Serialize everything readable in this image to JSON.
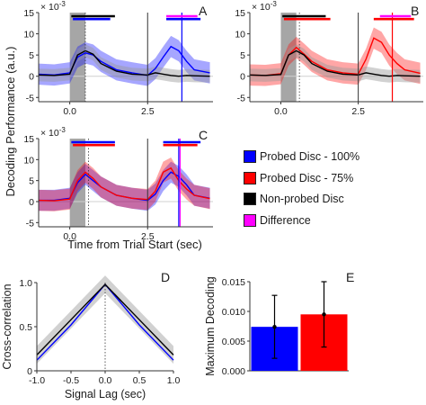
{
  "figure": {
    "shared_y_label": "Decoding Performance (a.u.)",
    "shared_x_label": "Time from Trial Start (sec)"
  },
  "legend": [
    {
      "label": "Probed Disc - 100%",
      "color": "#0000ff"
    },
    {
      "label": "Probed Disc - 75%",
      "color": "#ff0000"
    },
    {
      "label": "Non-probed Disc",
      "color": "#000000"
    },
    {
      "label": "Difference",
      "color": "#ff00ff"
    }
  ],
  "chart_data": [
    {
      "panel": "A",
      "type": "line",
      "y_multiplier": "x 10^-3",
      "xlim": [
        -1.0,
        4.6
      ],
      "ylim": [
        -6,
        15
      ],
      "xticks": [
        "0.0",
        "2.5"
      ],
      "yticks": [
        "-5",
        "0",
        "5",
        "10",
        "15"
      ],
      "shaded_window": [
        0,
        0.5
      ],
      "dotted_x": [
        0.5
      ],
      "vlines_black": [
        2.5
      ],
      "vline_series": 3.6,
      "sig_bars": [
        {
          "series": "Non-probed Disc",
          "color": "#000000",
          "from": 0.05,
          "to": 1.45
        },
        {
          "series": "Probed Disc - 100%",
          "color": "#0000ff",
          "from": 0.1,
          "to": 1.3
        },
        {
          "series": "Difference",
          "color": "#ff00ff",
          "from": 3.1,
          "to": 4.1
        },
        {
          "series": "Probed Disc - 100%",
          "color": "#0000ff",
          "from": 3.1,
          "to": 4.2
        }
      ],
      "x": [
        -1.0,
        -0.5,
        0.0,
        0.25,
        0.5,
        0.75,
        1.0,
        1.5,
        2.0,
        2.5,
        2.75,
        3.0,
        3.25,
        3.5,
        3.75,
        4.0,
        4.5
      ],
      "series": [
        {
          "name": "Probed Disc - 100%",
          "color": "#0000ff",
          "values": [
            0.5,
            0.3,
            0.8,
            4.5,
            5.5,
            5.0,
            3.5,
            1.5,
            0.8,
            0.2,
            1.8,
            4.5,
            7.0,
            6.0,
            3.5,
            1.5,
            0.8
          ],
          "err": 2.5
        },
        {
          "name": "Non-probed Disc",
          "color": "#000000",
          "values": [
            0.3,
            0.2,
            0.5,
            5.0,
            6.0,
            5.2,
            3.0,
            1.2,
            0.5,
            0.3,
            0.8,
            0.5,
            0.2,
            0.0,
            0.2,
            0.1,
            0.0
          ],
          "err": 1.5
        }
      ]
    },
    {
      "panel": "B",
      "type": "line",
      "y_multiplier": "x 10^-3",
      "xlim": [
        -1.0,
        4.6
      ],
      "ylim": [
        -6,
        15
      ],
      "xticks": [
        "0.0",
        "2.5"
      ],
      "yticks": [
        "-5",
        "0",
        "5",
        "10",
        "15"
      ],
      "shaded_window": [
        0,
        0.5
      ],
      "dotted_x": [
        0.6
      ],
      "vlines_black": [
        2.5
      ],
      "vline_series": 3.6,
      "sig_bars": [
        {
          "series": "Non-probed Disc",
          "color": "#000000",
          "from": 0.05,
          "to": 1.45
        },
        {
          "series": "Probed Disc - 75%",
          "color": "#ff0000",
          "from": 0.1,
          "to": 1.6
        },
        {
          "series": "Difference",
          "color": "#ff00ff",
          "from": 3.2,
          "to": 4.2
        },
        {
          "series": "Probed Disc - 75%",
          "color": "#ff0000",
          "from": 3.0,
          "to": 4.3
        }
      ],
      "x": [
        -1.0,
        -0.5,
        0.0,
        0.25,
        0.5,
        0.75,
        1.0,
        1.5,
        2.0,
        2.5,
        2.75,
        3.0,
        3.25,
        3.5,
        3.75,
        4.0,
        4.5
      ],
      "series": [
        {
          "name": "Probed Disc - 75%",
          "color": "#ff0000",
          "values": [
            0.3,
            0.2,
            0.6,
            5.0,
            6.8,
            5.2,
            3.5,
            1.5,
            0.8,
            0.5,
            4.0,
            9.0,
            8.0,
            5.0,
            3.0,
            1.5,
            0.7
          ],
          "err": 2.5
        },
        {
          "name": "Non-probed Disc",
          "color": "#000000",
          "values": [
            0.3,
            0.2,
            0.4,
            5.0,
            6.0,
            5.0,
            3.0,
            1.2,
            0.5,
            0.3,
            0.8,
            0.5,
            0.2,
            0.0,
            0.2,
            0.1,
            0.0
          ],
          "err": 1.5
        }
      ]
    },
    {
      "panel": "C",
      "type": "line",
      "y_multiplier": "x 10^-3",
      "xlim": [
        -1.0,
        4.6
      ],
      "ylim": [
        -6,
        15
      ],
      "xticks": [
        "0.0",
        "2.5"
      ],
      "yticks": [
        "-5",
        "0",
        "5",
        "10",
        "15"
      ],
      "shaded_window": [
        0,
        0.5
      ],
      "dotted_x": [
        0.6
      ],
      "vlines_black": [
        2.5
      ],
      "vline_series": 3.5,
      "sig_bars": [
        {
          "series": "Probed Disc - 100%",
          "color": "#0000ff",
          "from": 0.05,
          "to": 1.45
        },
        {
          "series": "Probed Disc - 75%",
          "color": "#ff0000",
          "from": 0.1,
          "to": 1.45
        },
        {
          "series": "Probed Disc - 100%",
          "color": "#0000ff",
          "from": 3.0,
          "to": 4.2
        },
        {
          "series": "Probed Disc - 75%",
          "color": "#ff0000",
          "from": 3.0,
          "to": 4.1
        }
      ],
      "x": [
        -1.0,
        -0.5,
        0.0,
        0.25,
        0.5,
        0.75,
        1.0,
        1.5,
        2.0,
        2.5,
        2.75,
        3.0,
        3.25,
        3.5,
        3.75,
        4.0,
        4.5
      ],
      "series": [
        {
          "name": "Probed Disc - 100%",
          "color": "#0000ff",
          "values": [
            0.3,
            0.3,
            0.8,
            4.5,
            6.5,
            5.0,
            3.5,
            1.5,
            0.8,
            0.3,
            1.8,
            5.0,
            7.0,
            6.0,
            4.0,
            1.5,
            0.8
          ],
          "err": 2.5
        },
        {
          "name": "Probed Disc - 75%",
          "color": "#ff0000",
          "values": [
            0.3,
            0.2,
            0.6,
            5.0,
            7.0,
            5.5,
            3.5,
            1.5,
            0.8,
            0.5,
            2.5,
            7.0,
            8.0,
            5.0,
            3.0,
            1.5,
            0.7
          ],
          "err": 2.5
        }
      ]
    },
    {
      "panel": "D",
      "type": "line",
      "xlabel": "Signal Lag (sec)",
      "ylabel": "Cross-correlation",
      "xlim": [
        -1.0,
        1.0
      ],
      "ylim": [
        0,
        1.0
      ],
      "xticks": [
        "-1.0",
        "-0.5",
        "0.0",
        "0.5",
        "1.0"
      ],
      "yticks": [
        "0",
        "0.5",
        "1.0"
      ],
      "dotted_x": [
        0.0
      ],
      "x": [
        -1.0,
        -0.5,
        0.0,
        0.5,
        1.0
      ],
      "series": [
        {
          "name": "Probed Disc - 100%",
          "color": "#0000ff",
          "values": [
            0.12,
            0.52,
            0.98,
            0.52,
            0.12
          ]
        },
        {
          "name": "Non-probed Disc",
          "color": "#000000",
          "values": [
            0.18,
            0.58,
            0.98,
            0.58,
            0.18
          ],
          "err": 0.1
        }
      ]
    },
    {
      "panel": "E",
      "type": "bar",
      "ylabel": "Maximum Decoding",
      "ylim": [
        0,
        0.015
      ],
      "yticks": [
        "0.000",
        "0.005",
        "0.010",
        "0.015"
      ],
      "categories": [
        "Probed Disc - 100%",
        "Probed Disc - 75%"
      ],
      "values": [
        0.0074,
        0.0095
      ],
      "err": [
        0.0053,
        0.0055
      ],
      "colors": [
        "#0000ff",
        "#ff0000"
      ]
    }
  ]
}
